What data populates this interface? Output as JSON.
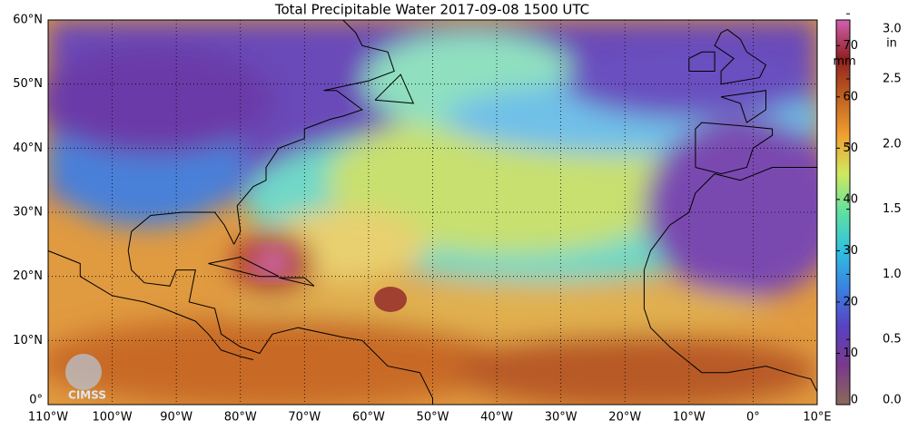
{
  "title": "Total Precipitable Water  2017-09-08 1500 UTC",
  "map": {
    "xlim": [
      -110,
      10
    ],
    "ylim": [
      0,
      60
    ],
    "xticks": [
      {
        "value": -110,
        "label": "110°W"
      },
      {
        "value": -100,
        "label": "100°W"
      },
      {
        "value": -90,
        "label": "90°W"
      },
      {
        "value": -80,
        "label": "80°W"
      },
      {
        "value": -70,
        "label": "70°W"
      },
      {
        "value": -60,
        "label": "60°W"
      },
      {
        "value": -50,
        "label": "50°W"
      },
      {
        "value": -40,
        "label": "40°W"
      },
      {
        "value": -30,
        "label": "30°W"
      },
      {
        "value": -20,
        "label": "20°W"
      },
      {
        "value": -10,
        "label": "10°W"
      },
      {
        "value": 0,
        "label": "0°"
      },
      {
        "value": 10,
        "label": "10°E"
      }
    ],
    "yticks": [
      {
        "value": 0,
        "label": "0°"
      },
      {
        "value": 10,
        "label": "10°N"
      },
      {
        "value": 20,
        "label": "20°N"
      },
      {
        "value": 30,
        "label": "30°N"
      },
      {
        "value": 40,
        "label": "40°N"
      },
      {
        "value": 50,
        "label": "50°N"
      },
      {
        "value": 60,
        "label": "60°N"
      }
    ],
    "grid": true
  },
  "colorbar": {
    "lim": [
      0,
      75
    ],
    "unit_left": "mm",
    "unit_right": "in",
    "ticks_mm": [
      0,
      10,
      20,
      30,
      40,
      50,
      60,
      70
    ],
    "ticks_in": [
      {
        "value": 0,
        "label": "0.0"
      },
      {
        "value": 12.7,
        "label": "0.5"
      },
      {
        "value": 25.4,
        "label": "1.0"
      },
      {
        "value": 38.1,
        "label": "1.5"
      },
      {
        "value": 50.8,
        "label": "2.0"
      },
      {
        "value": 63.5,
        "label": "2.5"
      },
      {
        "value": 76.2,
        "label": "3.0"
      }
    ],
    "colors": [
      "#8a6a5a",
      "#7a3a8a",
      "#5a40c0",
      "#3a80e0",
      "#30c0e0",
      "#60e0a0",
      "#d0e860",
      "#f0a030",
      "#c06020",
      "#902020",
      "#d060b0"
    ]
  },
  "logo": "CIMSS"
}
